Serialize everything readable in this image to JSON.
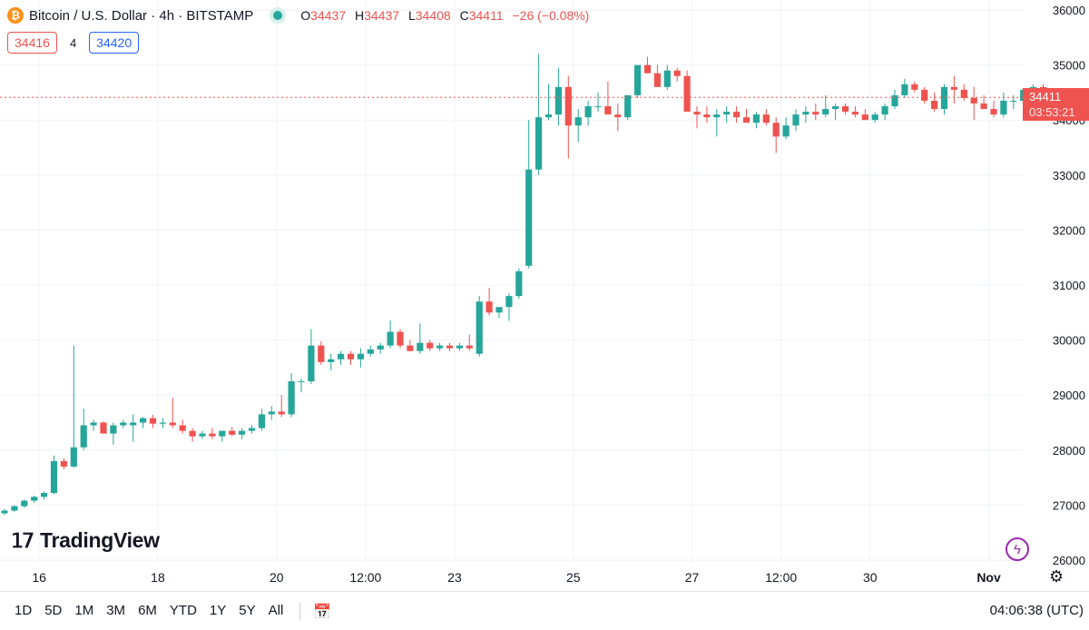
{
  "header": {
    "title": "Bitcoin / U.S. Dollar · 4h · BITSTAMP",
    "ohlc": {
      "o_label": "O",
      "o": "34437",
      "h_label": "H",
      "h": "34437",
      "l_label": "L",
      "l": "34408",
      "c_label": "C",
      "c": "34411",
      "change": "−26 (−0.08%)"
    },
    "bid": "34416",
    "spread": "4",
    "ask": "34420"
  },
  "last_price": {
    "value": "34411",
    "countdown": "03:53:21"
  },
  "watermark": "TradingView",
  "range_buttons": [
    "1D",
    "5D",
    "1M",
    "3M",
    "6M",
    "YTD",
    "1Y",
    "5Y",
    "All"
  ],
  "clock": "04:06:38 (UTC)",
  "colors": {
    "up": "#26a69a",
    "down": "#ef5350",
    "grid": "#f0f3fa"
  },
  "chart_data": {
    "type": "candlestick",
    "title": "Bitcoin / U.S. Dollar · 4h · BITSTAMP",
    "ylim": [
      25950,
      36200
    ],
    "y_ticks": [
      26000,
      27000,
      28000,
      29000,
      30000,
      31000,
      32000,
      33000,
      34000,
      35000,
      36000
    ],
    "x_ticks": [
      {
        "label": "16",
        "index": 3.5
      },
      {
        "label": "18",
        "index": 15.5
      },
      {
        "label": "20",
        "index": 27.5
      },
      {
        "label": "12:00",
        "index": 36.5
      },
      {
        "label": "23",
        "index": 45.5
      },
      {
        "label": "25",
        "index": 57.5
      },
      {
        "label": "27",
        "index": 69.5
      },
      {
        "label": "12:00",
        "index": 78.5
      },
      {
        "label": "30",
        "index": 87.5
      },
      {
        "label": "Nov",
        "index": 99.5
      }
    ],
    "last_price": 34411,
    "candles": [
      [
        26850,
        26930,
        26820,
        26900
      ],
      [
        26900,
        27000,
        26880,
        26980
      ],
      [
        26980,
        27100,
        26950,
        27080
      ],
      [
        27080,
        27170,
        27040,
        27150
      ],
      [
        27150,
        27250,
        27100,
        27220
      ],
      [
        27220,
        27900,
        27200,
        27800
      ],
      [
        27800,
        27850,
        27650,
        27700
      ],
      [
        27700,
        29900,
        27680,
        28050
      ],
      [
        28050,
        28750,
        28000,
        28450
      ],
      [
        28450,
        28550,
        28350,
        28500
      ],
      [
        28500,
        28520,
        28300,
        28300
      ],
      [
        28300,
        28500,
        28100,
        28450
      ],
      [
        28450,
        28550,
        28400,
        28500
      ],
      [
        28450,
        28650,
        28150,
        28500
      ],
      [
        28500,
        28600,
        28400,
        28580
      ],
      [
        28580,
        28640,
        28400,
        28480
      ],
      [
        28480,
        28580,
        28400,
        28500
      ],
      [
        28500,
        28950,
        28400,
        28450
      ],
      [
        28450,
        28550,
        28300,
        28350
      ],
      [
        28350,
        28400,
        28150,
        28250
      ],
      [
        28250,
        28350,
        28200,
        28300
      ],
      [
        28300,
        28400,
        28200,
        28250
      ],
      [
        28250,
        28350,
        28150,
        28350
      ],
      [
        28350,
        28420,
        28250,
        28280
      ],
      [
        28280,
        28400,
        28200,
        28350
      ],
      [
        28350,
        28450,
        28300,
        28400
      ],
      [
        28400,
        28750,
        28350,
        28650
      ],
      [
        28650,
        28800,
        28550,
        28700
      ],
      [
        28700,
        29000,
        28600,
        28650
      ],
      [
        28650,
        29400,
        28600,
        29250
      ],
      [
        29250,
        29300,
        29050,
        29250
      ],
      [
        29250,
        30200,
        29200,
        29900
      ],
      [
        29900,
        29980,
        29550,
        29600
      ],
      [
        29600,
        29750,
        29450,
        29650
      ],
      [
        29650,
        29800,
        29550,
        29750
      ],
      [
        29750,
        29800,
        29550,
        29650
      ],
      [
        29650,
        29850,
        29500,
        29750
      ],
      [
        29750,
        29900,
        29700,
        29830
      ],
      [
        29830,
        29950,
        29750,
        29900
      ],
      [
        29900,
        30350,
        29850,
        30150
      ],
      [
        30150,
        30200,
        29850,
        29900
      ],
      [
        29900,
        30000,
        29800,
        29800
      ],
      [
        29800,
        30300,
        29750,
        29950
      ],
      [
        29950,
        30000,
        29800,
        29850
      ],
      [
        29850,
        29950,
        29800,
        29900
      ],
      [
        29900,
        29950,
        29800,
        29850
      ],
      [
        29850,
        29950,
        29800,
        29900
      ],
      [
        29900,
        30100,
        29800,
        29850
      ],
      [
        29750,
        30800,
        29700,
        30700
      ],
      [
        30700,
        30950,
        30450,
        30500
      ],
      [
        30500,
        30600,
        30400,
        30600
      ],
      [
        30600,
        30850,
        30350,
        30800
      ],
      [
        30800,
        31300,
        30750,
        31250
      ],
      [
        31350,
        34000,
        31300,
        33100
      ],
      [
        33100,
        35200,
        33000,
        34050
      ],
      [
        34050,
        34650,
        34000,
        34100
      ],
      [
        34100,
        34950,
        33900,
        34600
      ],
      [
        34600,
        34800,
        33300,
        33900
      ],
      [
        33900,
        34200,
        33600,
        34050
      ],
      [
        34050,
        34350,
        33900,
        34250
      ],
      [
        34250,
        34500,
        34150,
        34250
      ],
      [
        34250,
        34700,
        34200,
        34100
      ],
      [
        34100,
        34300,
        33800,
        34050
      ],
      [
        34050,
        34400,
        34000,
        34450
      ],
      [
        34450,
        34950,
        34400,
        35000
      ],
      [
        35000,
        35150,
        34850,
        34850
      ],
      [
        34850,
        35000,
        34600,
        34600
      ],
      [
        34600,
        35000,
        34550,
        34900
      ],
      [
        34900,
        34950,
        34700,
        34800
      ],
      [
        34800,
        34900,
        34200,
        34150
      ],
      [
        34150,
        34250,
        33850,
        34100
      ],
      [
        34100,
        34250,
        33950,
        34050
      ],
      [
        34050,
        34200,
        33700,
        34100
      ],
      [
        34100,
        34250,
        33950,
        34150
      ],
      [
        34150,
        34250,
        33950,
        34050
      ],
      [
        34050,
        34200,
        33950,
        33950
      ],
      [
        33950,
        34150,
        33850,
        34100
      ],
      [
        34100,
        34200,
        33900,
        33950
      ],
      [
        33950,
        34050,
        33400,
        33700
      ],
      [
        33700,
        34050,
        33650,
        33900
      ],
      [
        33900,
        34200,
        33800,
        34100
      ],
      [
        34100,
        34250,
        33950,
        34150
      ],
      [
        34150,
        34300,
        34000,
        34100
      ],
      [
        34100,
        34450,
        34050,
        34200
      ],
      [
        34200,
        34300,
        34000,
        34250
      ],
      [
        34250,
        34300,
        34100,
        34150
      ],
      [
        34150,
        34250,
        34050,
        34100
      ],
      [
        34100,
        34200,
        34000,
        34000
      ],
      [
        34000,
        34150,
        33950,
        34100
      ],
      [
        34100,
        34300,
        34000,
        34250
      ],
      [
        34250,
        34550,
        34200,
        34450
      ],
      [
        34450,
        34750,
        34400,
        34650
      ],
      [
        34650,
        34700,
        34500,
        34550
      ],
      [
        34550,
        34600,
        34300,
        34350
      ],
      [
        34350,
        34500,
        34150,
        34200
      ],
      [
        34200,
        34650,
        34100,
        34600
      ],
      [
        34600,
        34800,
        34300,
        34550
      ],
      [
        34550,
        34650,
        34350,
        34400
      ],
      [
        34400,
        34600,
        34000,
        34300
      ],
      [
        34300,
        34450,
        34200,
        34200
      ],
      [
        34200,
        34350,
        34050,
        34100
      ],
      [
        34100,
        34500,
        34050,
        34350
      ],
      [
        34350,
        34450,
        34200,
        34350
      ],
      [
        34350,
        34550,
        34300,
        34550
      ],
      [
        34550,
        34650,
        34450,
        34600
      ],
      [
        34600,
        34650,
        34350,
        34400
      ],
      [
        34437,
        34437,
        34408,
        34411
      ]
    ]
  }
}
